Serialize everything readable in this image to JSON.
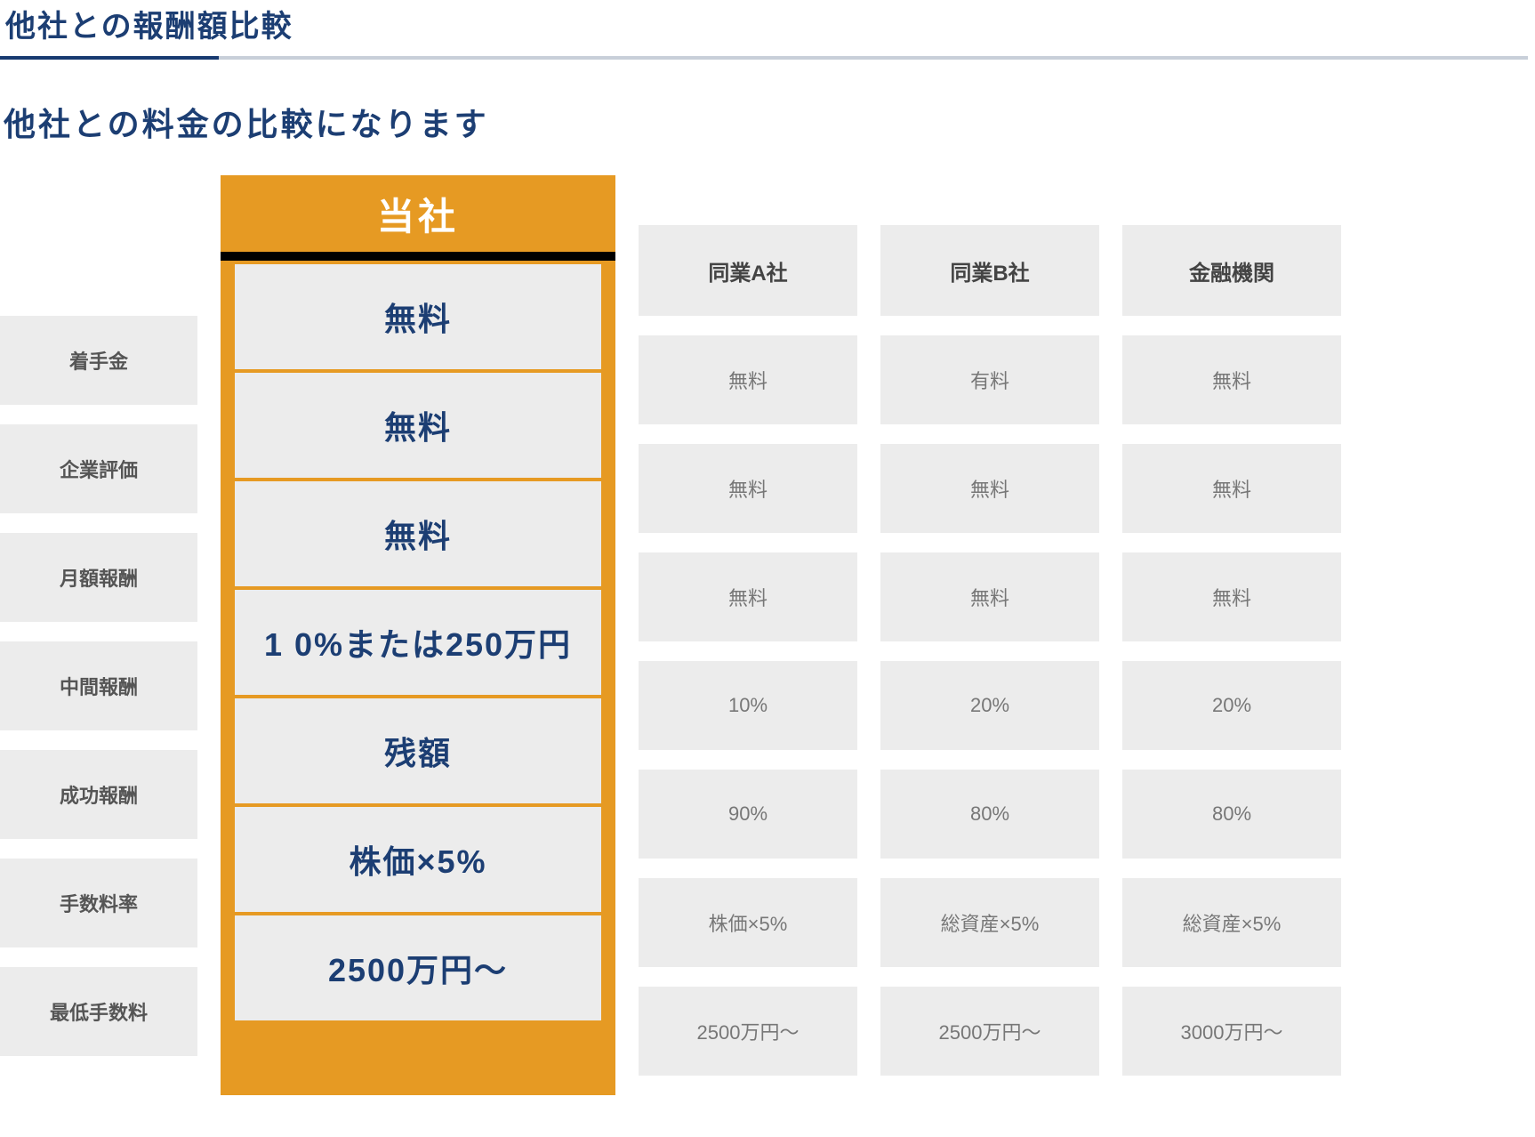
{
  "heading": {
    "title": "他社との報酬額比較",
    "subtitle": "他社との料金の比較になります"
  },
  "table": {
    "highlight_header": "当社",
    "row_labels": [
      "着手金",
      "企業評価",
      "月額報酬",
      "中間報酬",
      "成功報酬",
      "手数料率",
      "最低手数料"
    ],
    "highlight_values": [
      "無料",
      "無料",
      "無料",
      "1 0%または250万円",
      "残額",
      "株価×5%",
      "2500万円〜"
    ],
    "competitors": [
      {
        "name": "同業A社",
        "values": [
          "無料",
          "無料",
          "無料",
          "10%",
          "90%",
          "株価×5%",
          "2500万円〜"
        ]
      },
      {
        "name": "同業B社",
        "values": [
          "有料",
          "無料",
          "無料",
          "20%",
          "80%",
          "総資産×5%",
          "2500万円〜"
        ]
      },
      {
        "name": "金融機関",
        "values": [
          "無料",
          "無料",
          "無料",
          "20%",
          "80%",
          "総資産×5%",
          "3000万円〜"
        ]
      }
    ],
    "style": {
      "highlight_bg": "#e69a23",
      "highlight_text": "#ffffff",
      "highlight_value_color": "#1c3e73",
      "cell_bg": "#ececec",
      "cell_text": "#777777",
      "label_text": "#555555",
      "header_text": "#444444",
      "divider_color": "#000000",
      "highlight_font_size_pt": 27,
      "header_font_size_pt": 18,
      "cell_font_size_pt": 16,
      "label_font_size_pt": 16
    }
  },
  "title_style": {
    "text_color": "#1c3e73",
    "underline_dark": "#183a70",
    "underline_light": "#c8cfd9",
    "title_font_size_pt": 25,
    "subtitle_font_size_pt": 27
  }
}
